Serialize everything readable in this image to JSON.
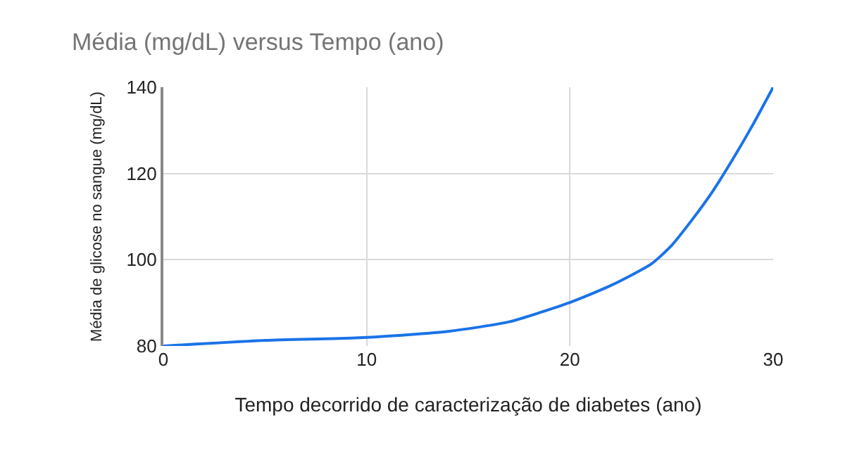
{
  "chart_data": {
    "type": "line",
    "title": "Média (mg/dL) versus Tempo (ano)",
    "xlabel": "Tempo decorrido de caracterização de diabetes (ano)",
    "ylabel": "Média de glicose no sangue (mg/dL)",
    "x": [
      0,
      5,
      10,
      14,
      17,
      20,
      22,
      24,
      25,
      26,
      27,
      28,
      29,
      30
    ],
    "series": [
      {
        "color": "#1a73e8",
        "values": [
          80,
          81.3,
          82,
          83.4,
          85.6,
          90.1,
          94,
          99,
          103.3,
          109.2,
          115.7,
          123.2,
          131.3,
          140
        ]
      }
    ],
    "xlim": [
      0,
      30
    ],
    "xticks": [
      0,
      10,
      20,
      30
    ],
    "ylim": [
      80,
      140
    ],
    "yticks": [
      80,
      100,
      120,
      140
    ],
    "grid": true,
    "legend": false,
    "marker": "none",
    "line_style": "solid"
  }
}
